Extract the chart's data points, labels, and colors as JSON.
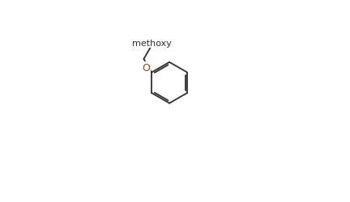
{
  "bg_color": "#ffffff",
  "bond_color": "#2d2d2d",
  "N_color": "#8B6914",
  "O_color": "#8B6914",
  "Cl_color": "#2d2d2d",
  "font_size": 9,
  "lw": 1.3
}
